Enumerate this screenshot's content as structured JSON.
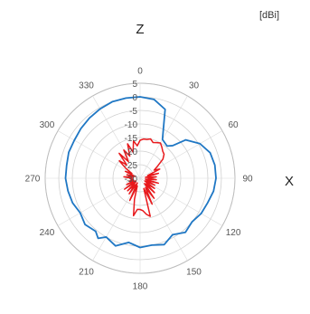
{
  "chart_data": {
    "type": "polar-line",
    "unit_label": "[dBi]",
    "axis_top_label": "Z",
    "axis_right_label": "X",
    "radial_min": -30,
    "radial_max": 5,
    "radial_ticks": [
      "5",
      "0",
      "-5",
      "-10",
      "-15",
      "-20",
      "-25",
      "-30"
    ],
    "radial_tick_values": [
      5,
      0,
      -5,
      -10,
      -15,
      -20,
      -25,
      -30
    ],
    "angle_ticks": [
      "0",
      "30",
      "60",
      "90",
      "120",
      "150",
      "180",
      "210",
      "240",
      "270",
      "300",
      "330"
    ],
    "angle_tick_values": [
      0,
      30,
      60,
      90,
      120,
      150,
      180,
      210,
      240,
      270,
      300,
      330
    ],
    "series": [
      {
        "color": "#1f77c4",
        "angles": [
          0,
          10,
          20,
          30,
          40,
          45,
          50,
          60,
          70,
          80,
          90,
          100,
          110,
          120,
          130,
          140,
          150,
          160,
          170,
          180,
          190,
          200,
          210,
          215,
          220,
          230,
          240,
          250,
          260,
          270,
          280,
          290,
          300,
          310,
          320,
          330,
          340,
          350,
          360
        ],
        "values": [
          0.0,
          -0.5,
          -3.0,
          -13.5,
          -14.5,
          -13.0,
          -8.0,
          -4.5,
          -2.5,
          -2.0,
          -2.0,
          -2.5,
          -3.5,
          -4.0,
          -5.0,
          -4.0,
          -6.0,
          -4.0,
          -5.0,
          -4.5,
          -6.0,
          -3.5,
          -5.0,
          -3.0,
          -4.5,
          -3.5,
          -4.5,
          -3.5,
          -3.0,
          -2.5,
          -2.5,
          -2.0,
          -2.0,
          -1.5,
          -1.0,
          -0.5,
          0.0,
          0.0,
          0.0
        ]
      },
      {
        "color": "#e8191c",
        "angles": [
          0,
          5,
          10,
          15,
          20,
          25,
          30,
          35,
          40,
          45,
          50,
          55,
          60,
          65,
          70,
          75,
          80,
          85,
          90,
          95,
          100,
          105,
          110,
          115,
          120,
          125,
          130,
          135,
          140,
          145,
          150,
          155,
          160,
          165,
          170,
          175,
          180,
          185,
          190,
          195,
          200,
          205,
          210,
          215,
          220,
          225,
          230,
          235,
          240,
          245,
          250,
          255,
          260,
          265,
          270,
          275,
          280,
          285,
          290,
          295,
          300,
          305,
          310,
          315,
          320,
          325,
          330,
          335,
          340,
          345,
          350,
          355,
          360
        ],
        "values": [
          -16.0,
          -15.5,
          -15.5,
          -15.0,
          -16.0,
          -15.5,
          -15.0,
          -16.0,
          -17.0,
          -17.5,
          -19.0,
          -22.0,
          -24.0,
          -22.0,
          -27.0,
          -23.0,
          -28.0,
          -24.0,
          -27.0,
          -24.0,
          -28.0,
          -23.0,
          -27.5,
          -24.0,
          -28.0,
          -23.5,
          -27.0,
          -22.5,
          -27.5,
          -21.0,
          -26.0,
          -19.5,
          -26.0,
          -15.5,
          -16.5,
          -18.0,
          -18.5,
          -18.5,
          -16.0,
          -22.0,
          -27.0,
          -21.0,
          -28.0,
          -23.0,
          -27.0,
          -23.5,
          -28.0,
          -23.0,
          -28.0,
          -24.5,
          -27.5,
          -26.0,
          -27.5,
          -26.5,
          -27.0,
          -24.0,
          -27.5,
          -25.0,
          -28.0,
          -24.0,
          -26.5,
          -23.5,
          -20.0,
          -23.0,
          -18.0,
          -22.5,
          -18.0,
          -21.0,
          -16.5,
          -20.0,
          -16.0,
          -18.0,
          -16.0
        ]
      }
    ]
  }
}
